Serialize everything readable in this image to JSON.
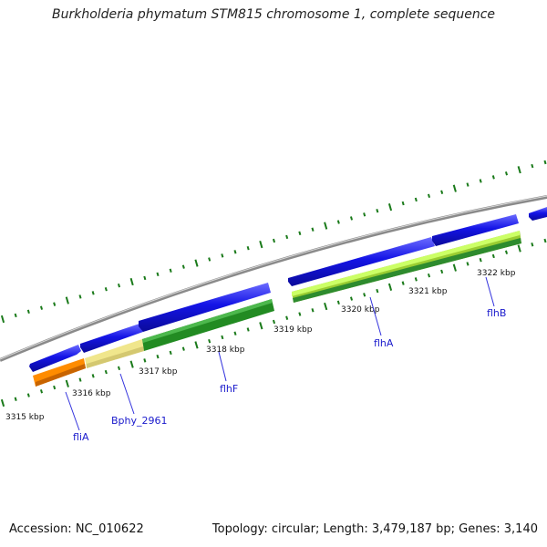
{
  "title": "Burkholderia phymatum STM815 chromosome 1, complete sequence",
  "footer": {
    "accession": "Accession: NC_010622",
    "summary": "Topology: circular; Length: 3,479,187 bp; Genes: 3,140"
  },
  "scale_labels": [
    "3315 kbp",
    "3316 kbp",
    "3317 kbp",
    "3318 kbp",
    "3319 kbp",
    "3320 kbp",
    "3321 kbp",
    "3322 kbp"
  ],
  "gene_labels": [
    "fliA",
    "Bphy_2961",
    "flhF",
    "flhA",
    "flhB"
  ],
  "colors": {
    "backbone": "#8a8a8a",
    "cds": "#1414e6",
    "tick": "#1a7a1a",
    "fliA_feature": "#ff8c00",
    "bphy2961_feature": "#f0e68c",
    "flhF_feature": "#228b22",
    "flhA_feature": "#9acd32",
    "label_blue": "#1a1acc"
  }
}
